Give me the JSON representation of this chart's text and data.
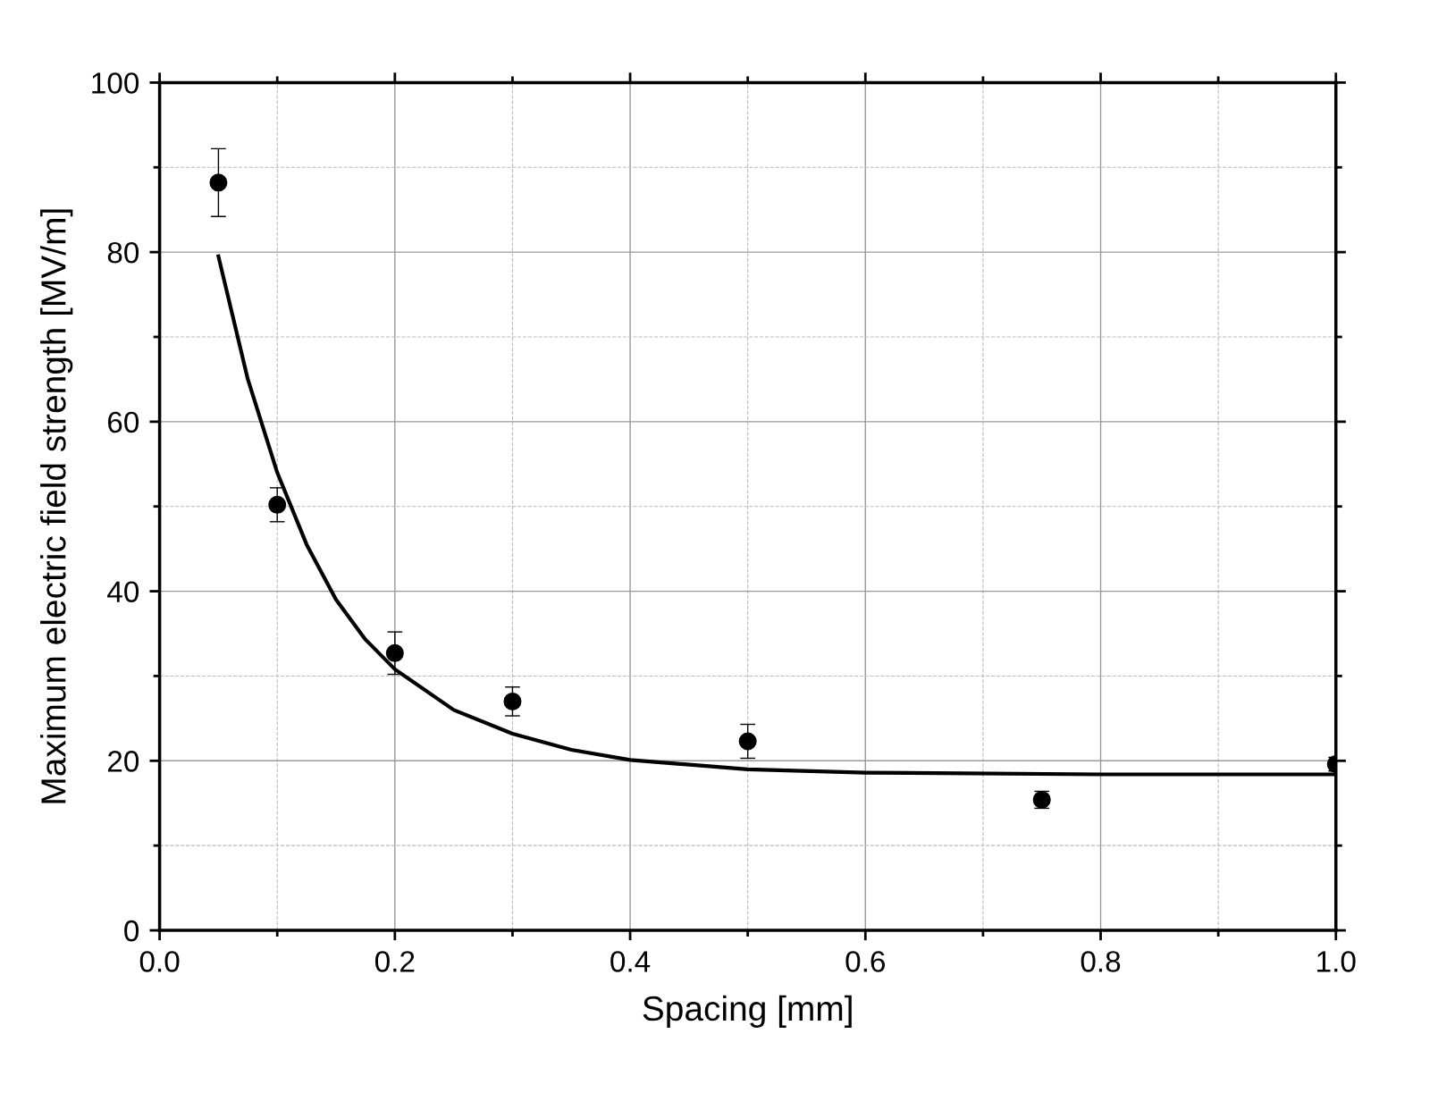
{
  "chart_data": {
    "type": "scatter",
    "xlabel": "Spacing [mm]",
    "ylabel": "Maximum electric field strength [MV/m]",
    "xlim": [
      0.0,
      1.0
    ],
    "xticks": [
      {
        "value": 0,
        "label": "0.0"
      },
      0.2,
      0.4,
      0.6,
      0.8,
      {
        "value": 1,
        "label": "1.0"
      }
    ],
    "ylim": [
      0,
      100
    ],
    "yticks": [
      0,
      20,
      40,
      60,
      80,
      100
    ],
    "grid": true,
    "legend": false,
    "series": [
      {
        "color": "#000000",
        "marker": "circle",
        "x": [
          0.05,
          0.1,
          0.2,
          0.3,
          0.5,
          0.75,
          1.0
        ],
        "values": [
          88.2,
          50.2,
          32.7,
          27.0,
          22.3,
          15.4,
          19.6
        ],
        "errors": [
          4,
          2,
          2.5,
          1.7,
          2,
          1,
          0.8
        ]
      },
      {
        "type": "line",
        "color": "#000000",
        "marker": "none",
        "line_style": "solid",
        "x": [
          0.05,
          0.075,
          0.1,
          0.125,
          0.15,
          0.175,
          0.2,
          0.25,
          0.3,
          0.35,
          0.4,
          0.5,
          0.6,
          0.8,
          1.0
        ],
        "values": [
          79.5,
          65,
          54,
          45.5,
          39,
          34.3,
          30.8,
          26,
          23.2,
          21.3,
          20.1,
          19.0,
          18.6,
          18.4,
          18.4
        ]
      }
    ]
  }
}
